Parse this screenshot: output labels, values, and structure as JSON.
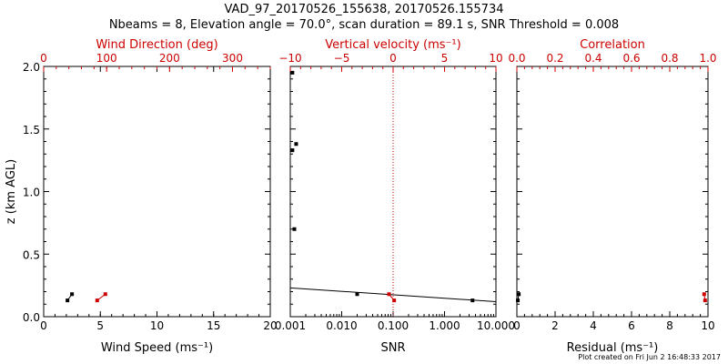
{
  "header": {
    "title": "VAD_97_20170526_155638, 20170526.155734",
    "subtitle": "Nbeams = 8, Elevation angle = 70.0°, scan duration = 89.1 s, SNR Threshold = 0.008"
  },
  "footer": {
    "text": "Plot created on Fri Jun  2 16:48:33 2017"
  },
  "colors": {
    "primary": "#000000",
    "secondary": "#cc0000"
  },
  "chart_data": [
    {
      "type": "line",
      "xlabel": "Wind Speed (ms⁻¹)",
      "ylabel": "z (km AGL)",
      "xlim": [
        0,
        20
      ],
      "x_ticks": [
        "0",
        "5",
        "10",
        "15",
        "20"
      ],
      "ylim": [
        0,
        2
      ],
      "y_ticks": [
        "0.0",
        "0.5",
        "1.0",
        "1.5",
        "2.0"
      ],
      "top_axis": {
        "label": "Wind Direction (deg)",
        "lim": [
          0,
          360
        ],
        "ticks": [
          "0",
          "100",
          "200",
          "300"
        ],
        "color": "#cc0000"
      },
      "series": [
        {
          "color": "#000000",
          "marker": "square",
          "x": [
            2.1,
            2.5
          ],
          "y": [
            0.13,
            0.18
          ]
        },
        {
          "axis": "top",
          "color": "#cc0000",
          "marker": "square",
          "x": [
            85,
            98
          ],
          "y": [
            0.13,
            0.18
          ]
        }
      ]
    },
    {
      "type": "scatter",
      "xlabel": "SNR",
      "xscale": "log",
      "xlim": [
        0.001,
        10
      ],
      "x_ticks": [
        "0.001",
        "0.010",
        "0.100",
        "1.000",
        "10.000"
      ],
      "ylim": [
        0,
        2
      ],
      "top_axis": {
        "label": "Vertical velocity (ms⁻¹)",
        "lim": [
          -10,
          10
        ],
        "ticks": [
          "−10",
          "−5",
          "0",
          "5",
          "10"
        ],
        "color": "#cc0000"
      },
      "reference_line": {
        "axis": "top",
        "x": 0,
        "style": "dotted",
        "color": "#cc0000"
      },
      "series": [
        {
          "color": "#000000",
          "marker": "square",
          "x": [
            0.0011,
            0.0011,
            0.0013,
            0.0012,
            0.02,
            3.5
          ],
          "y": [
            1.95,
            1.33,
            1.38,
            0.7,
            0.18,
            0.13
          ]
        },
        {
          "color": "#000000",
          "marker": "none",
          "x": [
            0.001,
            10
          ],
          "y": [
            0.23,
            0.12
          ]
        },
        {
          "axis": "top",
          "color": "#cc0000",
          "marker": "square",
          "x": [
            -0.4,
            0.1
          ],
          "y": [
            0.18,
            0.13
          ]
        }
      ]
    },
    {
      "type": "scatter",
      "xlabel": "Residual (ms⁻¹)",
      "xlim": [
        0,
        10
      ],
      "x_ticks": [
        "0",
        "2",
        "4",
        "6",
        "8",
        "10"
      ],
      "ylim": [
        0,
        2
      ],
      "top_axis": {
        "label": "Correlation",
        "lim": [
          0,
          1
        ],
        "ticks": [
          "0.0",
          "0.2",
          "0.4",
          "0.6",
          "0.8",
          "1.0"
        ],
        "color": "#cc0000"
      },
      "series": [
        {
          "color": "#000000",
          "marker": "square",
          "x": [
            0.05,
            0.1
          ],
          "y": [
            0.13,
            0.18
          ]
        },
        {
          "axis": "top",
          "color": "#cc0000",
          "marker": "square",
          "x": [
            0.985,
            0.98
          ],
          "y": [
            0.13,
            0.18
          ]
        }
      ]
    }
  ]
}
